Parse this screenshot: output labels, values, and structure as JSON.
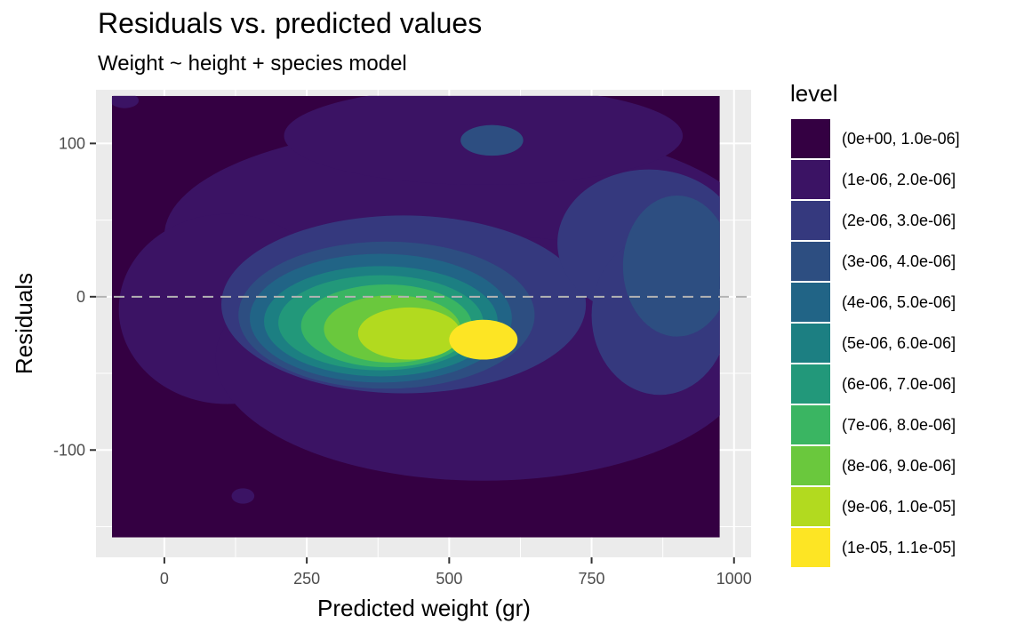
{
  "chart_data": {
    "type": "heatmap",
    "subtype": "filled-density-contour",
    "title": "Residuals vs. predicted values",
    "subtitle": "Weight ~ height + species model",
    "xlabel": "Predicted weight (gr)",
    "ylabel": "Residuals",
    "xlim": [
      -120,
      1030
    ],
    "ylim": [
      -170,
      135
    ],
    "x_ticks": [
      0,
      250,
      500,
      750,
      1000
    ],
    "x_tick_labels": [
      "0",
      "250",
      "500",
      "750",
      "1000"
    ],
    "y_ticks": [
      -100,
      0,
      100
    ],
    "y_tick_labels": [
      "-100",
      "0",
      "100"
    ],
    "grid": true,
    "reference_line": {
      "y": 0,
      "style": "dashed",
      "color": "#b3b3b3"
    },
    "density_extent": {
      "x": [
        -92,
        975
      ],
      "y": [
        -157,
        131
      ]
    },
    "peak": {
      "x": 560,
      "y": -28,
      "level": "(1e-05, 1.1e-05]"
    },
    "legend": {
      "title": "level",
      "position": "right",
      "entries": [
        {
          "label": "(0e+00, 1.0e-06]",
          "color": "#340042"
        },
        {
          "label": "(1e-06, 2.0e-06]",
          "color": "#3B1364"
        },
        {
          "label": "(2e-06, 3.0e-06]",
          "color": "#35397E"
        },
        {
          "label": "(3e-06, 4.0e-06]",
          "color": "#2D4E81"
        },
        {
          "label": "(4e-06, 5.0e-06]",
          "color": "#216486"
        },
        {
          "label": "(5e-06, 6.0e-06]",
          "color": "#1C7F82"
        },
        {
          "label": "(6e-06, 7.0e-06]",
          "color": "#22987A"
        },
        {
          "label": "(7e-06, 8.0e-06]",
          "color": "#3AB562"
        },
        {
          "label": "(8e-06, 9.0e-06]",
          "color": "#6AC83D"
        },
        {
          "label": "(9e-06, 1.0e-05]",
          "color": "#B2DA1F"
        },
        {
          "label": "(1e-05, 1.1e-05]",
          "color": "#FDE524"
        }
      ]
    }
  }
}
